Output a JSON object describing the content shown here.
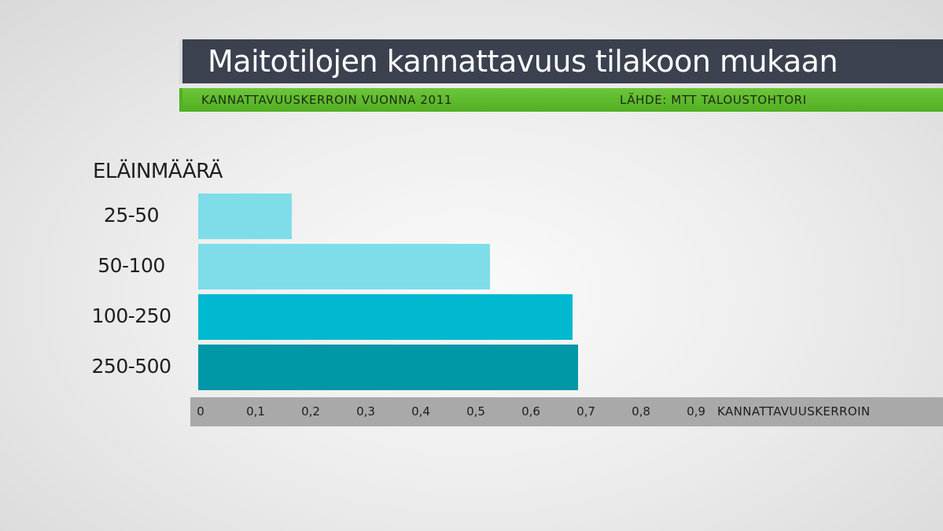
{
  "header": {
    "title": "Maitotilojen kannattavuus tilakoon mukaan",
    "subtitle": "KANNATTAVUUSKERROIN VUONNA 2011",
    "source": "LÄHDE: MTT TALOUSTOHTORI"
  },
  "colors": {
    "title_bg": "#3b414f",
    "subtitle_bg": "#5bb52b",
    "axis_bg": "#a9a9a9",
    "bar_colors": [
      "#7fdde9",
      "#7fdde9",
      "#00b9d0",
      "#0097a7"
    ]
  },
  "chart_data": {
    "type": "bar",
    "orientation": "horizontal",
    "title": "Maitotilojen kannattavuus tilakoon mukaan",
    "subtitle": "KANNATTAVUUSKERROIN VUONNA 2011",
    "ylabel": "ELÄINMÄÄRÄ",
    "xlabel": "KANNATTAVUUSKERROIN",
    "categories": [
      "25-50",
      "50-100",
      "100-250",
      "250-500"
    ],
    "values": [
      0.17,
      0.53,
      0.68,
      0.69
    ],
    "xlim": [
      0,
      0.9
    ],
    "ticks": [
      "0",
      "0,1",
      "0,2",
      "0,3",
      "0,4",
      "0,5",
      "0,6",
      "0,7",
      "0,8",
      "0,9"
    ],
    "grid": false,
    "legend": "none"
  }
}
